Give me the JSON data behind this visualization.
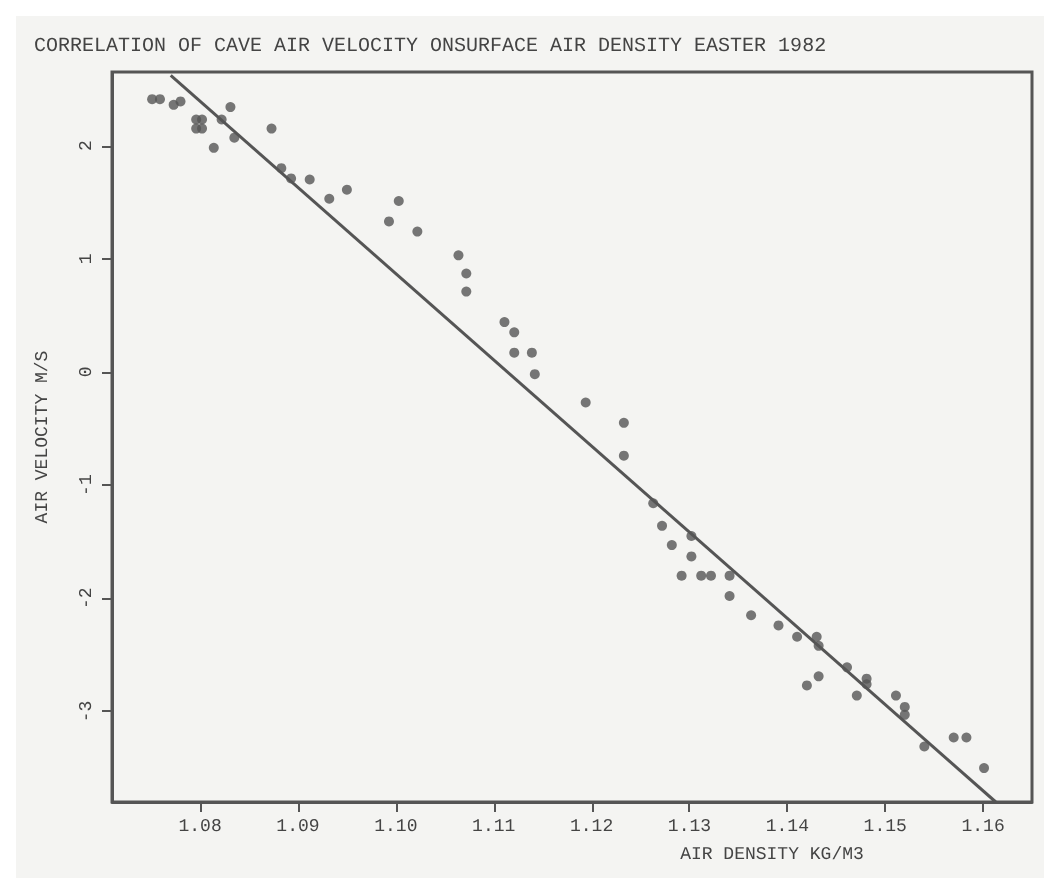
{
  "chart_data": {
    "type": "scatter",
    "title": "CORRELATION OF CAVE AIR VELOCITY ONSURFACE AIR DENSITY EASTER 1982",
    "xlabel": "AIR DENSITY KG/M3",
    "ylabel": "AIR VELOCITY M/S",
    "xlim": [
      1.071,
      1.165
    ],
    "xticks": [
      1.08,
      1.09,
      {
        "value": 1.1,
        "label": "1.10"
      },
      1.11,
      1.12,
      1.13,
      1.14,
      1.15,
      1.16
    ],
    "ylim": [
      -3.8,
      2.65
    ],
    "yticks": [
      -3,
      -2,
      -1,
      0,
      1,
      2
    ],
    "grid": false,
    "marker": "circle",
    "line_style": "solid",
    "series": [
      {
        "color": "#555555",
        "x": [
          1.0751,
          1.0759,
          1.0773,
          1.078,
          1.0796,
          1.0802,
          1.0796,
          1.0802,
          1.0814,
          1.0822,
          1.0831,
          1.0835,
          1.0873,
          1.0883,
          1.0893,
          1.0912,
          1.0932,
          1.095,
          1.0993,
          1.1003,
          1.1022,
          1.1064,
          1.1072,
          1.1072,
          1.1111,
          1.1121,
          1.1121,
          1.1139,
          1.1142,
          1.1194,
          1.1233,
          1.1233,
          1.1263,
          1.1272,
          1.1282,
          1.1302,
          1.1302,
          1.1292,
          1.1312,
          1.1322,
          1.1341,
          1.1341,
          1.1363,
          1.1391,
          1.141,
          1.143,
          1.1432,
          1.142,
          1.1432,
          1.1461,
          1.1471,
          1.1481,
          1.1481,
          1.1511,
          1.152,
          1.152,
          1.154,
          1.157,
          1.1583,
          1.1601
        ],
        "values": [
          2.41,
          2.41,
          2.36,
          2.39,
          2.23,
          2.23,
          2.15,
          2.15,
          1.98,
          2.23,
          2.34,
          2.07,
          2.15,
          1.8,
          1.71,
          1.7,
          1.53,
          1.61,
          1.33,
          1.51,
          1.24,
          1.03,
          0.87,
          0.71,
          0.44,
          0.35,
          0.17,
          0.17,
          -0.02,
          -0.27,
          -0.45,
          -0.74,
          -1.16,
          -1.36,
          -1.53,
          -1.45,
          -1.63,
          -1.8,
          -1.8,
          -1.8,
          -1.8,
          -1.98,
          -2.15,
          -2.24,
          -2.34,
          -2.34,
          -2.42,
          -2.77,
          -2.69,
          -2.61,
          -2.86,
          -2.71,
          -2.76,
          -2.86,
          -2.96,
          -3.03,
          -3.31,
          -3.23,
          -3.23,
          -3.5
        ]
      },
      {
        "type": "line",
        "marker": "none",
        "color": "#555555",
        "x": [
          1.077,
          1.1613
        ],
        "values": [
          2.62,
          -3.8
        ]
      }
    ]
  }
}
